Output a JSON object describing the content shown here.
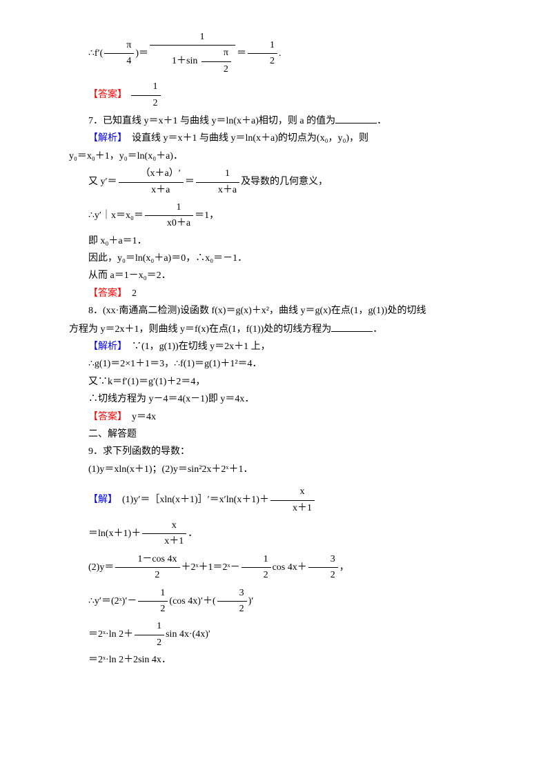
{
  "colors": {
    "red": "#ff0000",
    "blue": "#0000ff",
    "text": "#000000",
    "bg": "#ffffff"
  },
  "font": {
    "family": "SimSun",
    "size_pt": 14
  },
  "l1a": "∴f′(",
  "l1b": ")＝",
  "l1c": "＝",
  "l1d": ".",
  "f_pi4_n": "π",
  "f_pi4_d": "4",
  "f_inv_n": "1",
  "f_inv_d1": "1＋sin ",
  "f_inv_d2n": "π",
  "f_inv_d2d": "2",
  "f_12_n": "1",
  "f_12_d": "2",
  "ans_lbl": "【答案】",
  "anl_lbl": "【解析】",
  "sol_lbl": "【解】",
  "q7": "7．已知直线 y＝x＋1 与曲线 y＝ln(x＋a)相切，则 a 的值为",
  "q7_blank": "．",
  "a7_1": "　设直线 y＝x＋1 与曲线 y＝ln(x＋a)的切点为(x₀，y₀)，则",
  "a7_2": "y₀＝x₀＋1，y₀＝ln(x₀＋a)．",
  "a7_3a": "又 y′＝",
  "a7_3f1n": "（x＋a）′",
  "a7_3f1d": "x＋a",
  "a7_3b": "＝",
  "a7_3f2n": "1",
  "a7_3f2d": "x＋a",
  "a7_3c": "及导数的几何意义，",
  "a7_4a": "∴y′｜x＝x₀＝",
  "a7_4fn": "1",
  "a7_4fd": "x0＋a",
  "a7_4b": "＝1，",
  "a7_5": "即 x₀＋a＝1．",
  "a7_6": "因此，y₀＝ln(x₀＋a)＝0，∴x₀＝－1．",
  "a7_7": "从而 a＝1－x₀＝2．",
  "a7_ans": "　2",
  "q8a": "8．(xx·南通高二检测)设函数 f(x)＝g(x)＋x²，曲线 y＝g(x)在点(1，g(1))处的切线",
  "q8b": "方程为 y＝2x＋1，则曲线 y＝f(x)在点(1，f(1))处的切线方程为",
  "q8_blank": "．",
  "a8_1": "∵(1，g(1))在切线 y＝2x＋1 上，",
  "a8_2": "∴g(1)＝2×1＋1＝3，∴f(1)＝g(1)＋1²＝4．",
  "a8_3": "又∵k＝f′(1)＝g′(1)＋2＝4，",
  "a8_4": "∴切线方程为 y－4＝4(x－1)即 y＝4x．",
  "a8_ans": "　y＝4x",
  "sec2": "二、解答题",
  "q9": "9．求下列函数的导数：",
  "q9_1": "(1)y＝xln(x＋1)；(2)y＝sin²2x＋2ˣ＋1．",
  "s9_1a": "(1)y′＝［xln(x＋1)］′＝x′ln(x＋1)＋",
  "s9_1fn": "x",
  "s9_1fd": "x＋1",
  "s9_2a": "＝ln(x＋1)＋",
  "s9_2b": "．",
  "s9_3a": "(2)y＝",
  "s9_3f1n": "1－cos 4x",
  "s9_3f1d": "2",
  "s9_3b": "＋2ˣ＋1＝2ˣ－",
  "s9_3f2n": "1",
  "s9_3f2d": "2",
  "s9_3c": "cos 4x＋",
  "s9_3f3n": "3",
  "s9_3f3d": "2",
  "s9_3d": "，",
  "s9_4a": "∴y′＝(2ˣ)′－",
  "s9_4b": "(cos 4x)′＋(",
  "s9_4c": ")′",
  "s9_5a": "＝2ˣ·ln 2＋",
  "s9_5b": "sin 4x·(4x)′",
  "s9_6": "＝2ˣ·ln 2＋2sin 4x．"
}
